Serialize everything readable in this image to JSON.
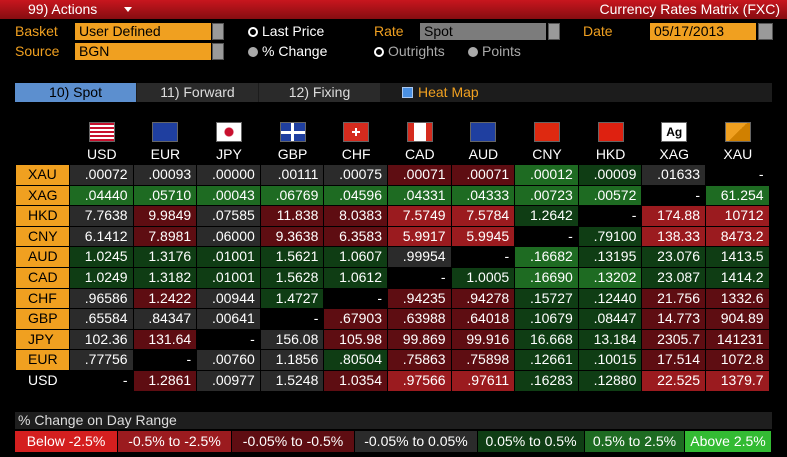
{
  "header": {
    "actions": "99) Actions",
    "title": "Currency Rates Matrix (FXC)"
  },
  "controls": {
    "basket_label": "Basket",
    "basket": "User Defined",
    "source_label": "Source",
    "source": "BGN",
    "price_options": [
      "Last Price",
      "% Change"
    ],
    "rate_label": "Rate",
    "rate": "Spot",
    "quote_options": [
      "Outrights",
      "Points"
    ],
    "date_label": "Date",
    "date": "05/17/2013"
  },
  "tabs": [
    "10) Spot",
    "11) Forward",
    "12) Fixing"
  ],
  "heat_map": "Heat Map",
  "table": {
    "columns": [
      "USD",
      "EUR",
      "JPY",
      "GBP",
      "CHF",
      "CAD",
      "AUD",
      "CNY",
      "HKD",
      "XAG",
      "XAU"
    ],
    "xag_icon": "Ag",
    "rows": [
      {
        "label": "XAU",
        "cells": [
          ".00072",
          ".00093",
          ".00000",
          ".00111",
          ".00075",
          ".00071",
          ".00071",
          ".00012",
          ".00009",
          ".01633",
          "-"
        ],
        "colors": [
          "#2b2b2b",
          "#2b2b2b",
          "#2b2b2b",
          "#2b2b2b",
          "#2b2b2b",
          "#5e0d12",
          "#5e0d12",
          "#1e6b22",
          "#0f3d14",
          "#2b2b2b",
          "#000000"
        ]
      },
      {
        "label": "XAG",
        "cells": [
          ".04440",
          ".05710",
          ".00043",
          ".06769",
          ".04596",
          ".04331",
          ".04333",
          ".00723",
          ".00572",
          "-",
          "61.254"
        ],
        "colors": [
          "#1e6b22",
          "#1e6b22",
          "#1e6b22",
          "#1e6b22",
          "#1e6b22",
          "#1e6b22",
          "#1e6b22",
          "#1e6b22",
          "#1e6b22",
          "#000000",
          "#1e6b22"
        ]
      },
      {
        "label": "HKD",
        "cells": [
          "7.7638",
          "9.9849",
          ".07585",
          "11.838",
          "8.0383",
          "7.5749",
          "7.5784",
          "1.2642",
          "-",
          "174.88",
          "10712"
        ],
        "colors": [
          "#2b2b2b",
          "#5e0d12",
          "#2b2b2b",
          "#5e0d12",
          "#5e0d12",
          "#9b1b1f",
          "#9b1b1f",
          "#0f3d14",
          "#000000",
          "#9b1b1f",
          "#9b1b1f"
        ]
      },
      {
        "label": "CNY",
        "cells": [
          "6.1412",
          "7.8981",
          ".06000",
          "9.3638",
          "6.3583",
          "5.9917",
          "5.9945",
          "-",
          ".79100",
          "138.33",
          "8473.2"
        ],
        "colors": [
          "#2b2b2b",
          "#5e0d12",
          "#2b2b2b",
          "#5e0d12",
          "#5e0d12",
          "#9b1b1f",
          "#9b1b1f",
          "#000000",
          "#0f3d14",
          "#9b1b1f",
          "#9b1b1f"
        ]
      },
      {
        "label": "AUD",
        "cells": [
          "1.0245",
          "1.3176",
          ".01001",
          "1.5621",
          "1.0607",
          ".99954",
          "-",
          ".16682",
          ".13195",
          "23.076",
          "1413.5"
        ],
        "colors": [
          "#0f3d14",
          "#0f3d14",
          "#0f3d14",
          "#0f3d14",
          "#0f3d14",
          "#2b2b2b",
          "#000000",
          "#1e6b22",
          "#0f3d14",
          "#0f3d14",
          "#0f3d14"
        ]
      },
      {
        "label": "CAD",
        "cells": [
          "1.0249",
          "1.3182",
          ".01001",
          "1.5628",
          "1.0612",
          "-",
          "1.0005",
          ".16690",
          ".13202",
          "23.087",
          "1414.2"
        ],
        "colors": [
          "#0f3d14",
          "#0f3d14",
          "#0f3d14",
          "#0f3d14",
          "#0f3d14",
          "#000000",
          "#0f3d14",
          "#1e6b22",
          "#1e6b22",
          "#0f3d14",
          "#0f3d14"
        ]
      },
      {
        "label": "CHF",
        "cells": [
          ".96586",
          "1.2422",
          ".00944",
          "1.4727",
          "-",
          ".94235",
          ".94278",
          ".15727",
          ".12440",
          "21.756",
          "1332.6"
        ],
        "colors": [
          "#2b2b2b",
          "#5e0d12",
          "#2b2b2b",
          "#0f3d14",
          "#000000",
          "#5e0d12",
          "#5e0d12",
          "#0f3d14",
          "#0f3d14",
          "#5e0d12",
          "#5e0d12"
        ]
      },
      {
        "label": "GBP",
        "cells": [
          ".65584",
          ".84347",
          ".00641",
          "-",
          ".67903",
          ".63988",
          ".64018",
          ".10679",
          ".08447",
          "14.773",
          "904.89"
        ],
        "colors": [
          "#2b2b2b",
          "#2b2b2b",
          "#2b2b2b",
          "#000000",
          "#5e0d12",
          "#5e0d12",
          "#5e0d12",
          "#0f3d14",
          "#0f3d14",
          "#5e0d12",
          "#5e0d12"
        ]
      },
      {
        "label": "JPY",
        "cells": [
          "102.36",
          "131.64",
          "-",
          "156.08",
          "105.98",
          "99.869",
          "99.916",
          "16.668",
          "13.184",
          "2305.7",
          "141231"
        ],
        "colors": [
          "#2b2b2b",
          "#5e0d12",
          "#000000",
          "#2b2b2b",
          "#5e0d12",
          "#5e0d12",
          "#5e0d12",
          "#0f3d14",
          "#0f3d14",
          "#5e0d12",
          "#5e0d12"
        ]
      },
      {
        "label": "EUR",
        "cells": [
          ".77756",
          "-",
          ".00760",
          "1.1856",
          ".80504",
          ".75863",
          ".75898",
          ".12661",
          ".10015",
          "17.514",
          "1072.8"
        ],
        "colors": [
          "#2b2b2b",
          "#000000",
          "#2b2b2b",
          "#2b2b2b",
          "#0f3d14",
          "#5e0d12",
          "#5e0d12",
          "#0f3d14",
          "#0f3d14",
          "#5e0d12",
          "#5e0d12"
        ]
      },
      {
        "label": "USD",
        "cells": [
          "-",
          "1.2861",
          ".00977",
          "1.5248",
          "1.0354",
          ".97566",
          ".97611",
          ".16283",
          ".12880",
          "22.525",
          "1379.7"
        ],
        "colors": [
          "#000000",
          "#5e0d12",
          "#2b2b2b",
          "#2b2b2b",
          "#5e0d12",
          "#9b1b1f",
          "#9b1b1f",
          "#0f3d14",
          "#0f3d14",
          "#9b1b1f",
          "#9b1b1f"
        ]
      }
    ]
  },
  "legend": {
    "title": "% Change on Day Range",
    "items": [
      {
        "label": "Below -2.5%",
        "color": "#d41f1f"
      },
      {
        "label": "-0.5% to -2.5%",
        "color": "#9b1b1f"
      },
      {
        "label": "-0.05% to -0.5%",
        "color": "#5e0d12"
      },
      {
        "label": "-0.05% to 0.05%",
        "color": "#2b2b2b"
      },
      {
        "label": "0.05% to 0.5%",
        "color": "#0f3d14"
      },
      {
        "label": "0.5% to 2.5%",
        "color": "#1e6b22"
      },
      {
        "label": "Above 2.5%",
        "color": "#33bb33"
      }
    ]
  }
}
